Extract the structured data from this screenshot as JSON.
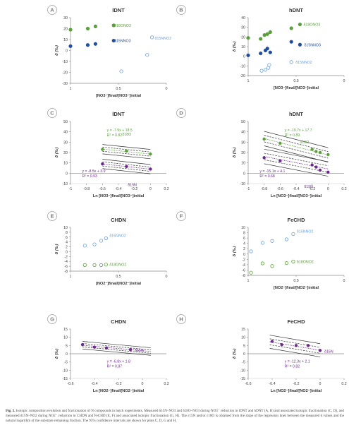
{
  "colors": {
    "green": "#5aa03a",
    "blue_dark": "#1f4f9e",
    "blue_light": "#6b9fd6",
    "purple": "#6c2a8c",
    "purple_light": "#b58fcc",
    "axis": "#8a8a8a",
    "badge": "#a0a0a0"
  },
  "caption": {
    "label": "Fig. 5.",
    "text": "Isotopic composition evolution and fractionation of N compounds in batch experiments. Measured δ15N–NO3 and δ18O–NO3 during NO3⁻ reduction in lDNT and hDNT (A, B) and associated isotopic fractionation (C, D), and measured δ15N–NO2 during NO2⁻ reduction in CHDN and FeCHD (E, F) and associated isotopic fractionation (G, H). The ε15N and/or ε18O is obtained from the slope of the regression lines between the measured δ values and the natural logarithm of the substrate remaining fraction. The 95% confidence intervals are shown for plots C, D, G and H."
  },
  "chart_data": [
    {
      "panel": "A",
      "title": "lDNT",
      "type": "scatter",
      "reverse_x": true,
      "xlim": [
        0,
        1
      ],
      "ylim": [
        -30,
        30
      ],
      "xticks": [
        1,
        0.5,
        0
      ],
      "xtick_labels": [
        "1",
        "0.5",
        "0"
      ],
      "yticks": [
        -30,
        -20,
        -10,
        0,
        10,
        20,
        30
      ],
      "ytick_labels": [
        "-30",
        "-20",
        "-10",
        "0",
        "10",
        "20",
        "30"
      ],
      "xlabel": "[NO3⁻]final/[NO3⁻]initial",
      "ylabel": "δ (‰)",
      "series": [
        {
          "name": "δ18ONO3",
          "style": "green",
          "marker": "filled",
          "points": [
            [
              1.0,
              19
            ],
            [
              0.82,
              20
            ],
            [
              0.74,
              22
            ],
            [
              0.55,
              23
            ]
          ]
        },
        {
          "name": "δ15NNO3",
          "style": "blue_dark",
          "marker": "filled",
          "points": [
            [
              1.0,
              4
            ],
            [
              0.82,
              5
            ],
            [
              0.74,
              6
            ],
            [
              0.55,
              9
            ]
          ]
        },
        {
          "name": "δ15NNO2",
          "style": "blue_light",
          "marker": "open",
          "points": [
            [
              0.47,
              -19
            ],
            [
              0.2,
              -4
            ],
            [
              0.15,
              12
            ]
          ]
        }
      ]
    },
    {
      "panel": "B",
      "title": "hDNT",
      "type": "scatter",
      "reverse_x": true,
      "xlim": [
        0,
        1
      ],
      "ylim": [
        -20,
        40
      ],
      "xticks": [
        1,
        0.5,
        0
      ],
      "xtick_labels": [
        "1",
        "0.5",
        "0"
      ],
      "yticks": [
        -20,
        -10,
        0,
        10,
        20,
        30,
        40
      ],
      "ytick_labels": [
        "-20",
        "-10",
        "0",
        "10",
        "20",
        "30",
        "40"
      ],
      "xlabel": "[NO3⁻]final/[NO3⁻]initial",
      "ylabel": "δ (‰)",
      "series": [
        {
          "name": "δ18ONO3",
          "style": "green",
          "marker": "filled",
          "points": [
            [
              1.0,
              19
            ],
            [
              0.87,
              18
            ],
            [
              0.83,
              22
            ],
            [
              0.8,
              23
            ],
            [
              0.77,
              25
            ],
            [
              0.55,
              29
            ],
            [
              0.46,
              33
            ]
          ]
        },
        {
          "name": "δ15NNO3",
          "style": "blue_dark",
          "marker": "filled",
          "points": [
            [
              1.0,
              1
            ],
            [
              0.87,
              3
            ],
            [
              0.82,
              6
            ],
            [
              0.8,
              8
            ],
            [
              0.77,
              4
            ],
            [
              0.55,
              15
            ],
            [
              0.46,
              12
            ]
          ]
        },
        {
          "name": "δ15NNO2",
          "style": "blue_light",
          "marker": "open",
          "points": [
            [
              0.86,
              -15
            ],
            [
              0.82,
              -14
            ],
            [
              0.79,
              -12
            ],
            [
              0.78,
              -9
            ],
            [
              0.55,
              -6
            ]
          ]
        }
      ]
    },
    {
      "panel": "C",
      "title": "lDNT",
      "type": "scatter_regression",
      "xlim": [
        -1,
        0.2
      ],
      "ylim": [
        -10,
        50
      ],
      "xticks": [
        -1,
        -0.8,
        -0.6,
        -0.4,
        -0.2,
        0,
        0.2
      ],
      "xtick_labels": [
        "-1",
        "-0.8",
        "-0.6",
        "-0.4",
        "-0.2",
        "0",
        "0.2"
      ],
      "yticks": [
        -10,
        0,
        10,
        20,
        30,
        40,
        50
      ],
      "ytick_labels": [
        "-10",
        "0",
        "10",
        "20",
        "30",
        "40",
        "50"
      ],
      "xlabel": "Ln [NO3⁻]final/[NO3⁻]initial",
      "ylabel": "δ (‰)",
      "series": [
        {
          "name": "δ18O",
          "style": "green",
          "slope": -7.9,
          "intercept": 18.5,
          "x_range": [
            -0.6,
            0
          ],
          "ci": 4.5,
          "points": [
            [
              -0.6,
              23
            ],
            [
              -0.3,
              21.5
            ],
            [
              0,
              18.5
            ]
          ],
          "equation": "y = -7.9x + 18.5",
          "r2": "R² = 0.82"
        },
        {
          "name": "δ15N",
          "style": "purple",
          "slope": -8.5,
          "intercept": 3.9,
          "x_range": [
            -0.6,
            0
          ],
          "ci": 4.5,
          "points": [
            [
              -0.6,
              9
            ],
            [
              -0.3,
              6.5
            ],
            [
              0,
              4
            ]
          ],
          "equation": "y = -8.5x + 3.9",
          "r2": "R² = 0.93"
        }
      ]
    },
    {
      "panel": "D",
      "title": "hDNT",
      "type": "scatter_regression",
      "xlim": [
        -1,
        0.2
      ],
      "ylim": [
        -10,
        50
      ],
      "xticks": [
        -1,
        -0.8,
        -0.6,
        -0.4,
        -0.2,
        0,
        0.2
      ],
      "xtick_labels": [
        "-1",
        "-0.8",
        "-0.6",
        "-0.4",
        "-0.2",
        "0",
        "0.2"
      ],
      "yticks": [
        -10,
        0,
        10,
        20,
        30,
        40,
        50
      ],
      "ytick_labels": [
        "-10",
        "0",
        "10",
        "20",
        "30",
        "40",
        "50"
      ],
      "xlabel": "Ln [NO3⁻]final/[NO3⁻]initial",
      "ylabel": "δ (‰)",
      "series": [
        {
          "name": "δ18O",
          "style": "green",
          "slope": -19.7,
          "intercept": 17.7,
          "x_range": [
            -0.8,
            0
          ],
          "ci": 7,
          "points": [
            [
              -0.8,
              33
            ],
            [
              -0.6,
              29
            ],
            [
              -0.2,
              23
            ],
            [
              -0.15,
              21
            ],
            [
              -0.1,
              20
            ],
            [
              0,
              18
            ]
          ],
          "equation": "y = -19.7x + 17.7",
          "r2": "R² = 0.89"
        },
        {
          "name": "δ15N",
          "style": "purple",
          "slope": -15.1,
          "intercept": 4.1,
          "x_range": [
            -0.8,
            0
          ],
          "ci": 7,
          "points": [
            [
              -0.8,
              15
            ],
            [
              -0.6,
              12
            ],
            [
              -0.2,
              8
            ],
            [
              -0.15,
              6
            ],
            [
              -0.1,
              3
            ],
            [
              0,
              1
            ]
          ],
          "equation": "y = -15.1x + 4.1",
          "r2": "R² = 0.68"
        }
      ]
    },
    {
      "panel": "E",
      "title": "CHDN",
      "type": "scatter",
      "reverse_x": true,
      "xlim": [
        0,
        1
      ],
      "ylim": [
        -8,
        10
      ],
      "xticks": [
        1,
        0.5,
        0
      ],
      "xtick_labels": [
        "1",
        "0.5",
        "0"
      ],
      "yticks": [
        -8,
        -6,
        -4,
        -2,
        0,
        2,
        4,
        6,
        8,
        10
      ],
      "ytick_labels": [
        "-8",
        "-6",
        "-4",
        "-2",
        "0",
        "2",
        "4",
        "6",
        "8",
        "10"
      ],
      "xlabel": "[NO2⁻]final/[NO2⁻]initial",
      "ylabel": "δ (‰)",
      "series": [
        {
          "name": "δ15NNO2",
          "style": "blue_light",
          "marker": "open",
          "points": [
            [
              0.85,
              2.5
            ],
            [
              0.75,
              3
            ],
            [
              0.68,
              4.5
            ],
            [
              0.63,
              5.5
            ]
          ]
        },
        {
          "name": "δ18ONO2",
          "style": "green",
          "marker": "open",
          "points": [
            [
              0.85,
              -5.5
            ],
            [
              0.75,
              -5.5
            ],
            [
              0.68,
              -5.5
            ],
            [
              0.63,
              -5.3
            ]
          ]
        }
      ]
    },
    {
      "panel": "F",
      "title": "FeCHD",
      "type": "scatter",
      "reverse_x": true,
      "xlim": [
        0,
        1
      ],
      "ylim": [
        -8,
        10
      ],
      "xticks": [
        1,
        0.5,
        0
      ],
      "xtick_labels": [
        "1",
        "0.5",
        "0"
      ],
      "yticks": [
        -8,
        -6,
        -4,
        -2,
        0,
        2,
        4,
        6,
        8,
        10
      ],
      "ytick_labels": [
        "-8",
        "-6",
        "-4",
        "-2",
        "0",
        "2",
        "4",
        "6",
        "8",
        "10"
      ],
      "xlabel": "[NO2⁻]final/[NO2⁻]initial",
      "ylabel": "δ (‰)",
      "series": [
        {
          "name": "δ15NNO2",
          "style": "blue_light",
          "marker": "open",
          "points": [
            [
              0.97,
              1
            ],
            [
              0.85,
              4.2
            ],
            [
              0.75,
              4.9
            ],
            [
              0.6,
              5.5
            ],
            [
              0.53,
              7.5
            ]
          ]
        },
        {
          "name": "δ18ONO2",
          "style": "green",
          "marker": "open",
          "points": [
            [
              0.97,
              -7
            ],
            [
              0.85,
              -3.5
            ],
            [
              0.75,
              -4.5
            ],
            [
              0.6,
              -3.4
            ],
            [
              0.53,
              -2.8
            ]
          ]
        }
      ]
    },
    {
      "panel": "G",
      "title": "CHDN",
      "type": "scatter_regression",
      "xlim": [
        -0.6,
        0.2
      ],
      "ylim": [
        -15,
        15
      ],
      "xticks": [
        -0.6,
        -0.4,
        -0.2,
        0,
        0.2
      ],
      "xtick_labels": [
        "-0.6",
        "-0.4",
        "-0.2",
        "0",
        "0.2"
      ],
      "yticks": [
        -15,
        -10,
        -5,
        0,
        5,
        10,
        15
      ],
      "ytick_labels": [
        "-15",
        "-10",
        "-5",
        "0",
        "5",
        "10",
        "15"
      ],
      "xlabel": "Ln [NO2⁻]final/[NO2⁻]initial",
      "ylabel": "δ (‰)",
      "series": [
        {
          "name": "δ15N",
          "style": "purple",
          "slope": -6.8,
          "intercept": 1.8,
          "x_range": [
            -0.5,
            0.07
          ],
          "ci": 2.3,
          "points": [
            [
              -0.5,
              5.5
            ],
            [
              -0.4,
              4
            ],
            [
              -0.3,
              3.5
            ],
            [
              -0.1,
              2.5
            ]
          ],
          "equation": "y = -6.8x + 1.8",
          "r2": "R² = 0.87"
        }
      ]
    },
    {
      "panel": "H",
      "title": "FeCHD",
      "type": "scatter_regression",
      "xlim": [
        -0.6,
        0.2
      ],
      "ylim": [
        -15,
        15
      ],
      "xticks": [
        -0.6,
        -0.4,
        -0.2,
        0,
        0.2
      ],
      "xtick_labels": [
        "-0.6",
        "-0.4",
        "-0.2",
        "0",
        "0.2"
      ],
      "yticks": [
        -15,
        -10,
        -5,
        0,
        5,
        10,
        15
      ],
      "ytick_labels": [
        "-15",
        "-10",
        "-5",
        "0",
        "5",
        "10",
        "15"
      ],
      "xlabel": "Ln [NO2⁻]final/[NO2⁻]initial",
      "ylabel": "δ (‰)",
      "series": [
        {
          "name": "δ15N",
          "style": "purple",
          "slope": -12.3,
          "intercept": 2.1,
          "x_range": [
            -0.42,
            0
          ],
          "ci": 4,
          "points": [
            [
              -0.4,
              7.5
            ],
            [
              -0.32,
              5.5
            ],
            [
              -0.2,
              5
            ],
            [
              -0.1,
              5
            ],
            [
              0,
              2
            ]
          ],
          "equation": "y = -12.3x + 2.1",
          "r2": "R² = 0.82"
        }
      ]
    }
  ]
}
